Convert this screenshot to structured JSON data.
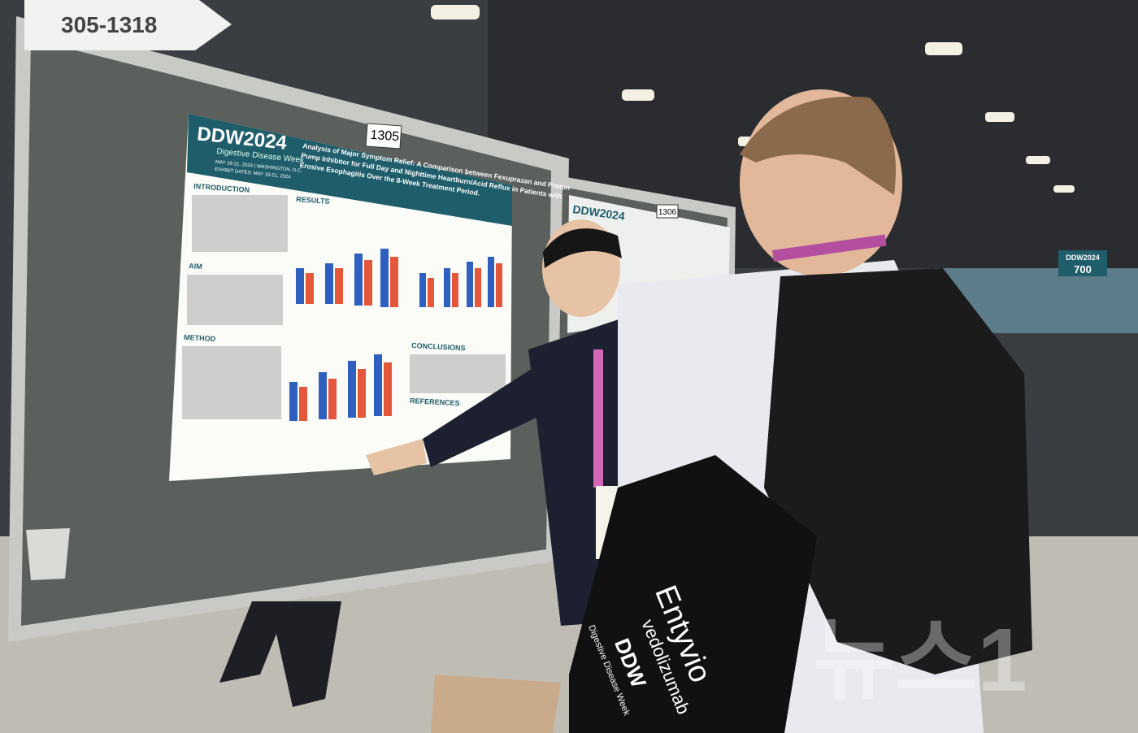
{
  "sign": {
    "range": "305-1318"
  },
  "poster": {
    "board_number": "1305",
    "logo": "DDW2024",
    "logo_subtitle": "Digestive Disease Week",
    "dates": "MAY 18-21, 2024 | WASHINGTON, D.C.",
    "exhibit_dates": "EXHIBIT DATES: MAY 19-21, 2024",
    "title": [
      "Analysis of Major Symptom Relief: A Comparison between Fexuprazan and Proton",
      "Pump Inhibitor for Full Day and Nighttime Heartburn/Acid Reflux in Patients with",
      "Erosive Esophagitis Over the 8-Week Treatment Period."
    ],
    "sections": [
      "INTRODUCTION",
      "AIM",
      "METHOD",
      "RESULTS",
      "CONCLUSIONS",
      "REFERENCES"
    ]
  },
  "second_poster": {
    "board_number": "1306",
    "logo": "DDW2024"
  },
  "hall_sign": {
    "logo": "DDW2024",
    "number": "700"
  },
  "bag": {
    "brand": "Entyvio",
    "generic": "vedolizumab",
    "logo": "DDW",
    "logo_subtitle": "Digestive Disease Week"
  },
  "watermark": "뉴스1"
}
